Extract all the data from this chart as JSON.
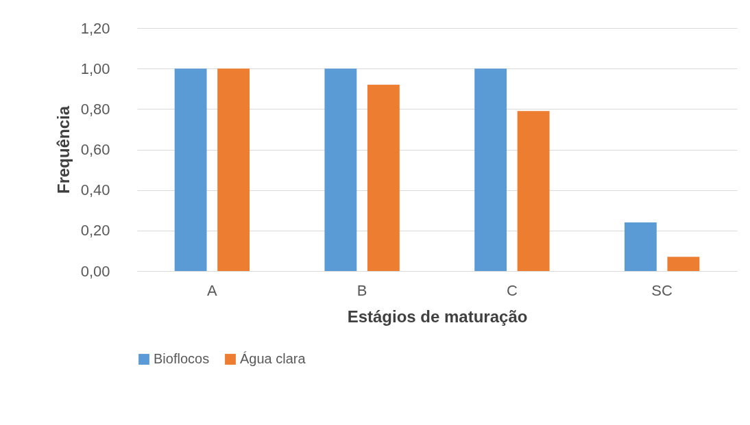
{
  "chart_data": {
    "type": "bar",
    "xlabel": "Estágios de maturação",
    "ylabel": "Frequência",
    "categories": [
      "A",
      "B",
      "C",
      "SC"
    ],
    "series": [
      {
        "name": "Bioflocos",
        "color": "#5b9bd5",
        "values": [
          1.0,
          1.0,
          1.0,
          0.24
        ]
      },
      {
        "name": "Água clara",
        "color": "#ed7d31",
        "values": [
          1.0,
          0.92,
          0.79,
          0.07
        ]
      }
    ],
    "ylim": [
      0,
      1.2
    ],
    "yticks": [
      {
        "value": 0,
        "label": "0,00"
      },
      {
        "value": 0.2,
        "label": "0,20"
      },
      {
        "value": 0.4,
        "label": "0,40"
      },
      {
        "value": 0.6,
        "label": "0,60"
      },
      {
        "value": 0.8,
        "label": "0,80"
      },
      {
        "value": 1.0,
        "label": "1,00"
      },
      {
        "value": 1.2,
        "label": "1,20"
      }
    ],
    "grid": "y",
    "legend": "bottom"
  }
}
